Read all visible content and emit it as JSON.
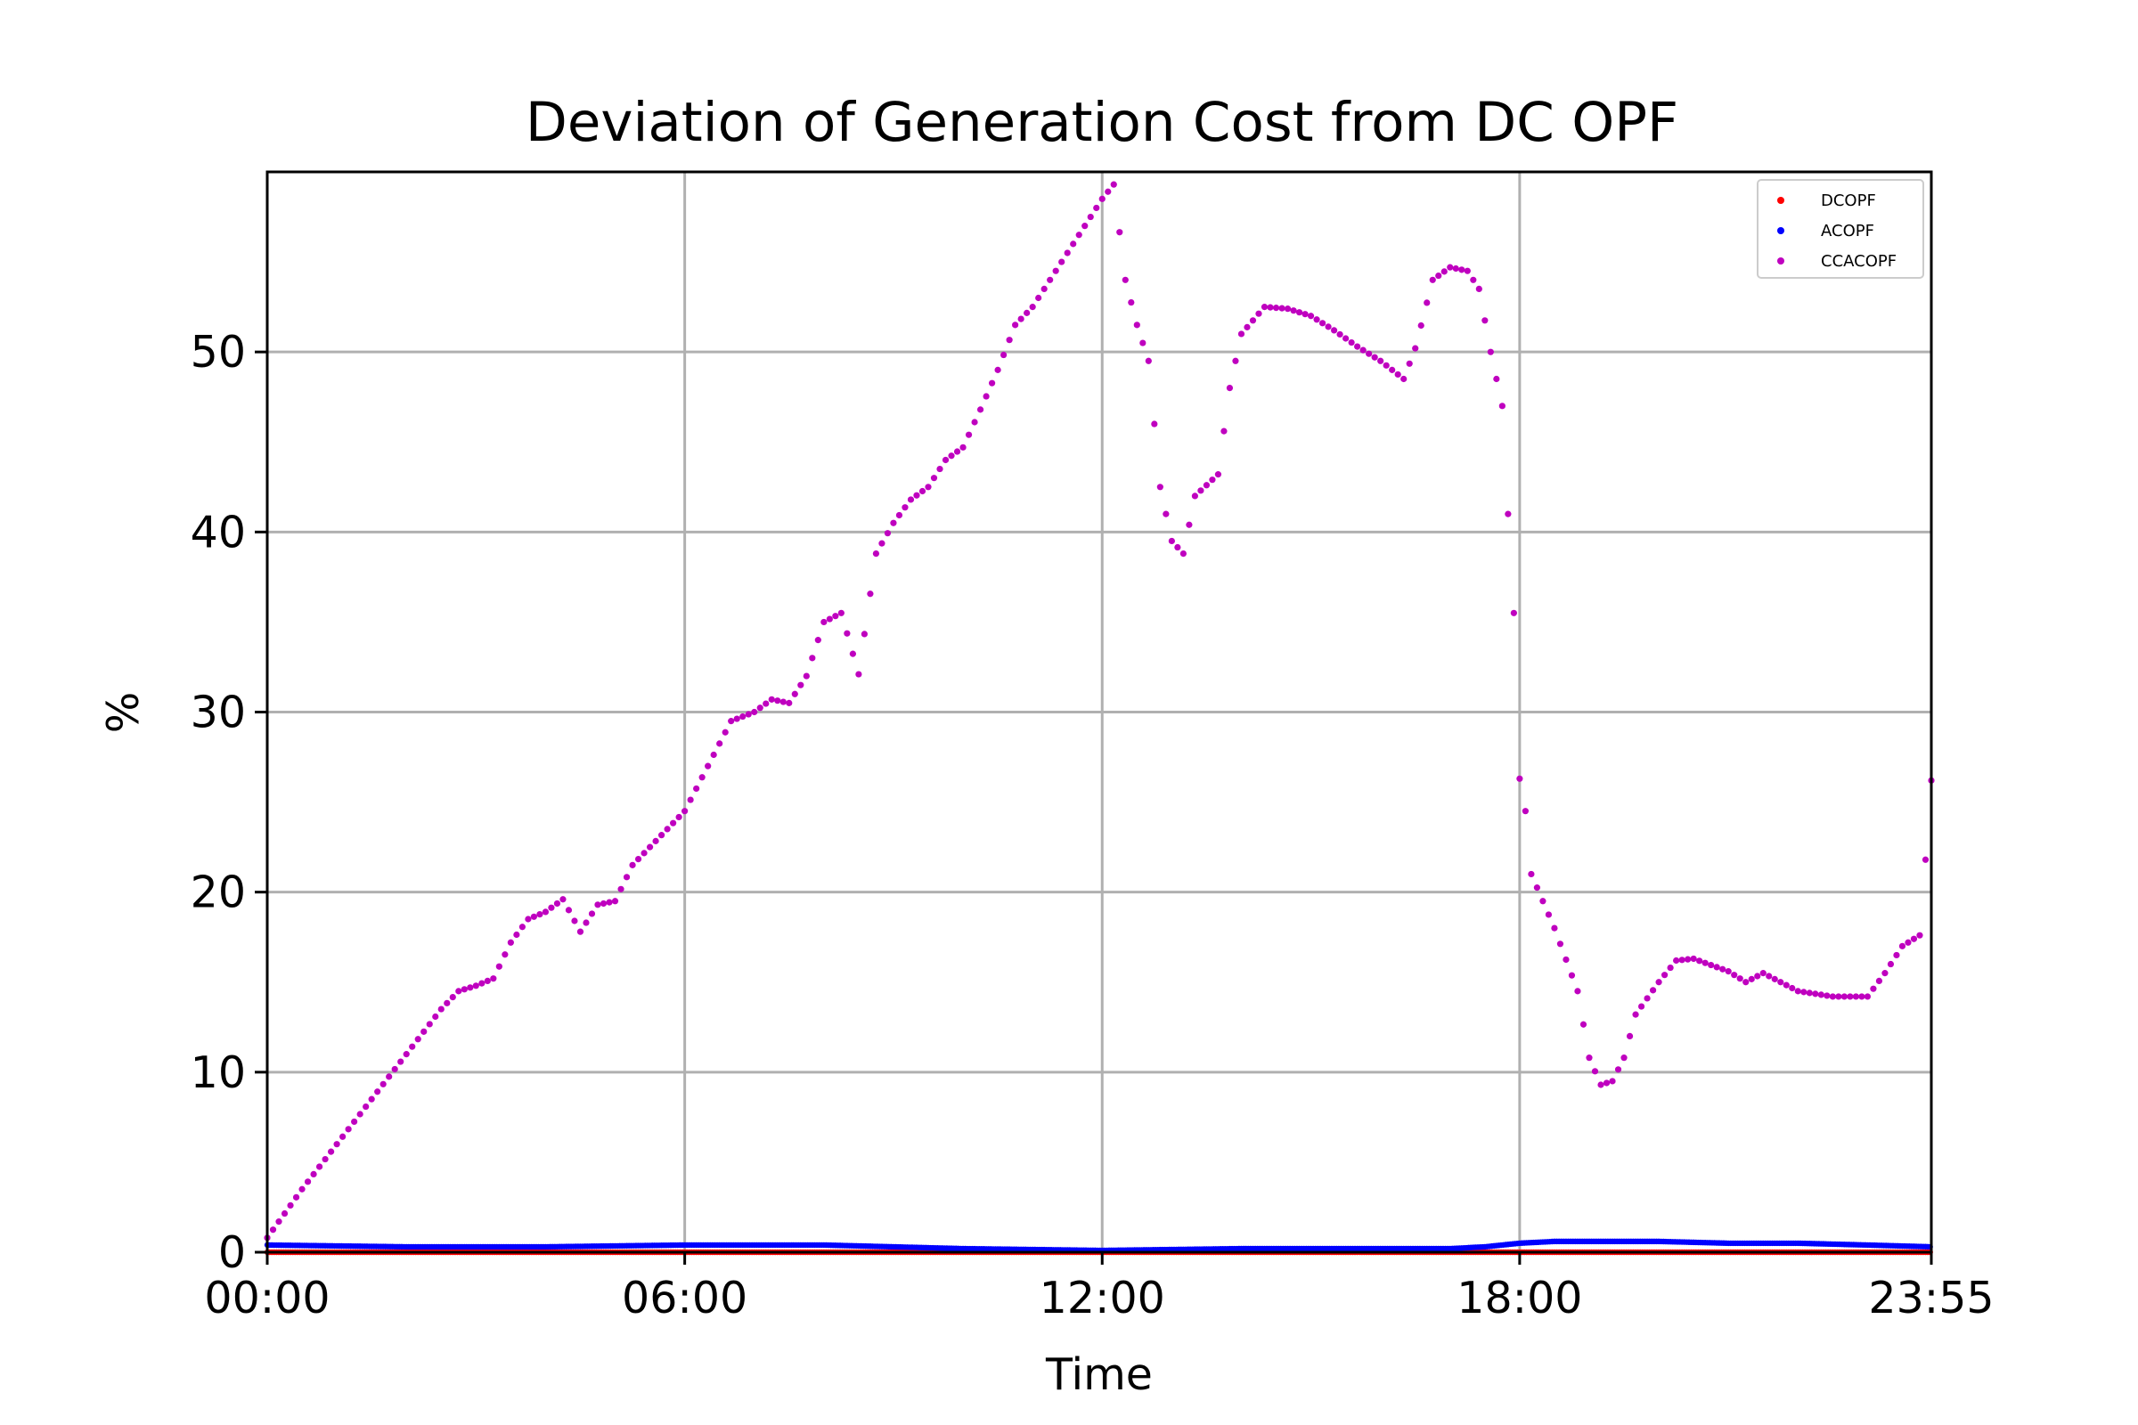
{
  "chart_data": {
    "type": "scatter",
    "title": "Deviation of Generation Cost from DC OPF",
    "xlabel": "Time",
    "ylabel": "%",
    "xlim": [
      "00:00",
      "23:55"
    ],
    "ylim": [
      0,
      60
    ],
    "grid": true,
    "legend_position": "top-right",
    "x_ticks": [
      "00:00",
      "06:00",
      "12:00",
      "18:00",
      "23:55"
    ],
    "y_ticks": [
      0,
      10,
      20,
      30,
      40,
      50
    ],
    "series": [
      {
        "name": "DCOPF",
        "color": "#ff0000",
        "points": [
          [
            "00:00",
            0
          ],
          [
            "23:55",
            0
          ]
        ]
      },
      {
        "name": "ACOPF",
        "color": "#0000ff",
        "points": [
          [
            "00:00",
            0.4
          ],
          [
            "02:00",
            0.3
          ],
          [
            "04:00",
            0.3
          ],
          [
            "06:00",
            0.4
          ],
          [
            "08:00",
            0.4
          ],
          [
            "10:00",
            0.2
          ],
          [
            "12:00",
            0.1
          ],
          [
            "14:00",
            0.2
          ],
          [
            "16:00",
            0.2
          ],
          [
            "17:00",
            0.2
          ],
          [
            "17:30",
            0.3
          ],
          [
            "18:00",
            0.5
          ],
          [
            "18:30",
            0.6
          ],
          [
            "19:00",
            0.6
          ],
          [
            "20:00",
            0.6
          ],
          [
            "21:00",
            0.5
          ],
          [
            "22:00",
            0.5
          ],
          [
            "23:00",
            0.4
          ],
          [
            "23:55",
            0.3
          ]
        ]
      },
      {
        "name": "CCACOPF",
        "color": "#bf00bf",
        "points": [
          [
            "00:00",
            0.8
          ],
          [
            "00:30",
            3.5
          ],
          [
            "01:00",
            6.0
          ],
          [
            "01:30",
            8.5
          ],
          [
            "02:00",
            11.0
          ],
          [
            "02:30",
            13.5
          ],
          [
            "02:45",
            14.5
          ],
          [
            "03:00",
            14.8
          ],
          [
            "03:15",
            15.2
          ],
          [
            "03:30",
            17.2
          ],
          [
            "03:45",
            18.5
          ],
          [
            "04:00",
            18.9
          ],
          [
            "04:15",
            19.6
          ],
          [
            "04:30",
            17.8
          ],
          [
            "04:45",
            19.3
          ],
          [
            "05:00",
            19.5
          ],
          [
            "05:15",
            21.5
          ],
          [
            "05:30",
            22.5
          ],
          [
            "05:45",
            23.5
          ],
          [
            "06:00",
            24.5
          ],
          [
            "06:20",
            27.0
          ],
          [
            "06:40",
            29.5
          ],
          [
            "07:00",
            30.0
          ],
          [
            "07:15",
            30.7
          ],
          [
            "07:30",
            30.5
          ],
          [
            "07:45",
            32.0
          ],
          [
            "08:00",
            35.0
          ],
          [
            "08:15",
            35.5
          ],
          [
            "08:30",
            32.1
          ],
          [
            "08:45",
            38.8
          ],
          [
            "09:00",
            40.5
          ],
          [
            "09:15",
            41.8
          ],
          [
            "09:30",
            42.5
          ],
          [
            "09:45",
            44.0
          ],
          [
            "10:00",
            44.7
          ],
          [
            "10:15",
            46.8
          ],
          [
            "10:30",
            49.0
          ],
          [
            "10:45",
            51.5
          ],
          [
            "11:00",
            52.5
          ],
          [
            "11:15",
            54.0
          ],
          [
            "11:30",
            55.5
          ],
          [
            "11:45",
            57.0
          ],
          [
            "12:00",
            58.5
          ],
          [
            "12:10",
            59.3
          ],
          [
            "12:20",
            54.0
          ],
          [
            "12:30",
            51.5
          ],
          [
            "12:40",
            49.5
          ],
          [
            "12:50",
            42.5
          ],
          [
            "13:00",
            39.5
          ],
          [
            "13:10",
            38.8
          ],
          [
            "13:20",
            42.0
          ],
          [
            "13:40",
            43.2
          ],
          [
            "13:50",
            48.0
          ],
          [
            "14:00",
            51.0
          ],
          [
            "14:20",
            52.5
          ],
          [
            "14:40",
            52.4
          ],
          [
            "15:00",
            52.0
          ],
          [
            "15:20",
            51.2
          ],
          [
            "15:40",
            50.3
          ],
          [
            "16:00",
            49.5
          ],
          [
            "16:20",
            48.5
          ],
          [
            "16:30",
            50.2
          ],
          [
            "16:45",
            54.0
          ],
          [
            "17:00",
            54.7
          ],
          [
            "17:15",
            54.5
          ],
          [
            "17:25",
            53.5
          ],
          [
            "17:35",
            50.0
          ],
          [
            "17:45",
            47.0
          ],
          [
            "17:50",
            41.0
          ],
          [
            "17:55",
            35.5
          ],
          [
            "18:00",
            26.3
          ],
          [
            "18:05",
            24.5
          ],
          [
            "18:10",
            21.0
          ],
          [
            "18:30",
            18.0
          ],
          [
            "18:50",
            14.5
          ],
          [
            "19:00",
            10.8
          ],
          [
            "19:10",
            9.3
          ],
          [
            "19:20",
            9.5
          ],
          [
            "19:30",
            10.8
          ],
          [
            "19:40",
            13.2
          ],
          [
            "20:00",
            15.0
          ],
          [
            "20:15",
            16.2
          ],
          [
            "20:30",
            16.3
          ],
          [
            "21:00",
            15.6
          ],
          [
            "21:15",
            15.0
          ],
          [
            "21:30",
            15.5
          ],
          [
            "22:00",
            14.5
          ],
          [
            "22:30",
            14.2
          ],
          [
            "23:00",
            14.2
          ],
          [
            "23:15",
            15.5
          ],
          [
            "23:30",
            17.0
          ],
          [
            "23:45",
            17.6
          ],
          [
            "23:48",
            20.1
          ],
          [
            "23:52",
            23.5
          ],
          [
            "23:55",
            26.2
          ]
        ]
      }
    ]
  }
}
